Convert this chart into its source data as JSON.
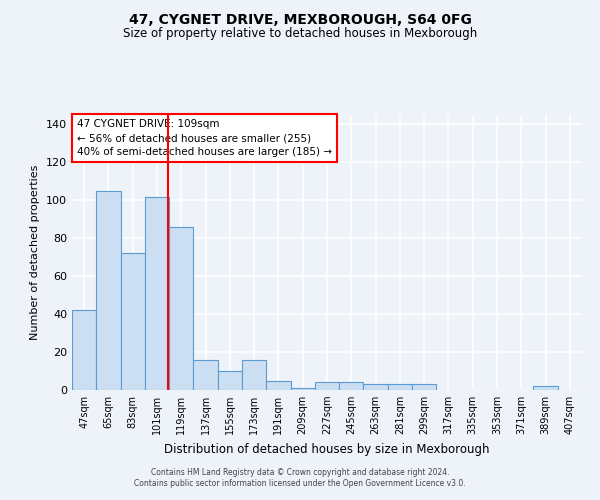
{
  "title1": "47, CYGNET DRIVE, MEXBOROUGH, S64 0FG",
  "title2": "Size of property relative to detached houses in Mexborough",
  "xlabel": "Distribution of detached houses by size in Mexborough",
  "ylabel": "Number of detached properties",
  "categories": [
    "47sqm",
    "65sqm",
    "83sqm",
    "101sqm",
    "119sqm",
    "137sqm",
    "155sqm",
    "173sqm",
    "191sqm",
    "209sqm",
    "227sqm",
    "245sqm",
    "263sqm",
    "281sqm",
    "299sqm",
    "317sqm",
    "335sqm",
    "353sqm",
    "371sqm",
    "389sqm",
    "407sqm"
  ],
  "values": [
    42,
    105,
    72,
    102,
    86,
    16,
    10,
    16,
    5,
    1,
    4,
    4,
    3,
    3,
    3,
    0,
    0,
    0,
    0,
    2,
    0
  ],
  "bar_color": "#ccdff2",
  "bar_edge_color": "#5b9bd5",
  "annotation_text": "47 CYGNET DRIVE: 109sqm\n← 56% of detached houses are smaller (255)\n40% of semi-detached houses are larger (185) →",
  "ylim": [
    0,
    145
  ],
  "yticks": [
    0,
    20,
    40,
    60,
    80,
    100,
    120,
    140
  ],
  "background_color": "#eef2f9",
  "grid_color": "#ffffff",
  "footer_line1": "Contains HM Land Registry data © Crown copyright and database right 2024.",
  "footer_line2": "Contains public sector information licensed under the Open Government Licence v3.0."
}
